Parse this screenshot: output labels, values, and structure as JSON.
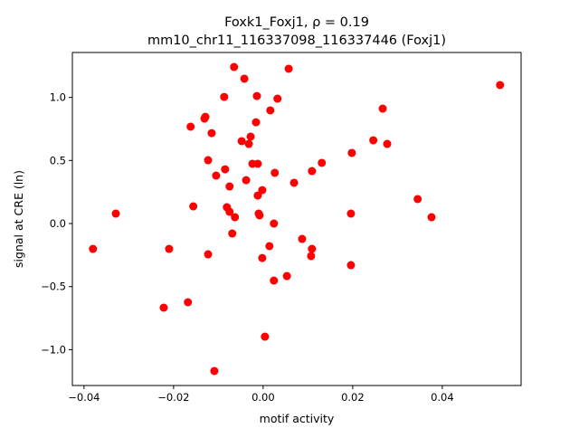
{
  "chart_data": {
    "type": "scatter",
    "title_line1": "Foxk1_Foxj1, ρ = 0.19",
    "title_line2": "mm10_chr11_116337098_116337446 (Foxj1)",
    "xlabel": "motif activity",
    "ylabel": "signal at CRE (ln)",
    "xlim": [
      -0.0426,
      0.0576
    ],
    "ylim": [
      -1.284,
      1.356
    ],
    "xticks": [
      -0.04,
      -0.02,
      0.0,
      0.02,
      0.04
    ],
    "xtick_labels": [
      "−0.04",
      "−0.02",
      "0.00",
      "0.02",
      "0.04"
    ],
    "yticks": [
      -1.0,
      -0.5,
      0.0,
      0.5,
      1.0
    ],
    "ytick_labels": [
      "−1.0",
      "−0.5",
      "0.0",
      "0.5",
      "1.0"
    ],
    "grid": false,
    "marker_color": "#ff0000",
    "points": [
      [
        -0.038,
        -0.201
      ],
      [
        -0.0329,
        0.079
      ],
      [
        -0.021,
        -0.201
      ],
      [
        -0.0222,
        -0.667
      ],
      [
        -0.0168,
        -0.624
      ],
      [
        -0.0156,
        0.136
      ],
      [
        -0.0162,
        0.768
      ],
      [
        -0.0131,
        0.832
      ],
      [
        -0.0129,
        0.846
      ],
      [
        -0.0123,
        0.502
      ],
      [
        -0.0123,
        -0.244
      ],
      [
        -0.0115,
        0.717
      ],
      [
        -0.0109,
        -1.169
      ],
      [
        -0.0105,
        0.38
      ],
      [
        -0.0087,
        1.004
      ],
      [
        -0.0085,
        0.43
      ],
      [
        -0.0075,
        0.294
      ],
      [
        -0.0081,
        0.129
      ],
      [
        -0.0075,
        0.093
      ],
      [
        -0.0069,
        -0.079
      ],
      [
        -0.0063,
        0.05
      ],
      [
        -0.0065,
        1.241
      ],
      [
        -0.0042,
        1.148
      ],
      [
        -0.0048,
        0.653
      ],
      [
        -0.0038,
        0.344
      ],
      [
        -0.0032,
        0.631
      ],
      [
        -0.0028,
        0.689
      ],
      [
        -0.0024,
        0.474
      ],
      [
        -0.0016,
        0.803
      ],
      [
        -0.0014,
        1.011
      ],
      [
        -0.0012,
        0.474
      ],
      [
        -0.001,
        0.079
      ],
      [
        -0.0012,
        0.222
      ],
      [
        -0.0008,
        0.065
      ],
      [
        -0.0002,
        0.265
      ],
      [
        -0.0002,
        -0.273
      ],
      [
        0.0004,
        -0.897
      ],
      [
        0.0014,
        -0.179
      ],
      [
        0.0016,
        0.897
      ],
      [
        0.0024,
        0.0
      ],
      [
        0.0024,
        -0.452
      ],
      [
        0.0026,
        0.402
      ],
      [
        0.0032,
        0.99
      ],
      [
        0.0053,
        -0.416
      ],
      [
        0.0057,
        1.227
      ],
      [
        0.0069,
        0.323
      ],
      [
        0.0087,
        -0.122
      ],
      [
        0.0109,
        -0.201
      ],
      [
        0.0109,
        0.416
      ],
      [
        0.0107,
        -0.258
      ],
      [
        0.0131,
        0.481
      ],
      [
        0.0196,
        0.079
      ],
      [
        0.0196,
        -0.33
      ],
      [
        0.0198,
        0.56
      ],
      [
        0.0246,
        0.66
      ],
      [
        0.0267,
        0.911
      ],
      [
        0.0277,
        0.631
      ],
      [
        0.0345,
        0.194
      ],
      [
        0.0376,
        0.05
      ],
      [
        0.0529,
        1.098
      ]
    ]
  }
}
